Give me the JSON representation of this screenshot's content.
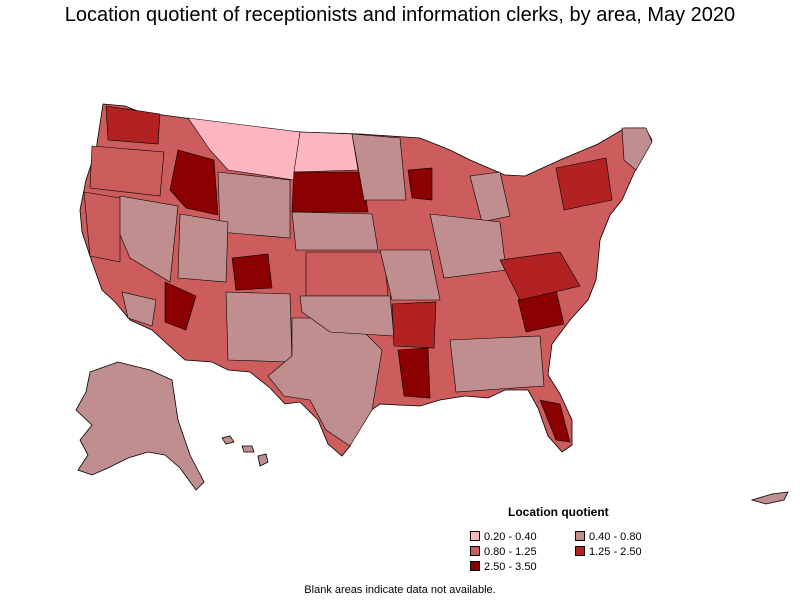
{
  "title": "Location quotient of receptionists and information clerks, by area, May 2020",
  "legend": {
    "title": "Location quotient",
    "items": [
      {
        "label": "0.20 - 0.40",
        "color": "#ffb6c1"
      },
      {
        "label": "0.40 - 0.80",
        "color": "#c08e8e"
      },
      {
        "label": "0.80 - 1.25",
        "color": "#cd5c5c"
      },
      {
        "label": "1.25 - 2.50",
        "color": "#b22222"
      },
      {
        "label": "2.50 - 3.50",
        "color": "#8b0000"
      }
    ]
  },
  "footnote": "Blank areas indicate data not available.",
  "colors": {
    "border": "#000000",
    "background": "#ffffff"
  }
}
